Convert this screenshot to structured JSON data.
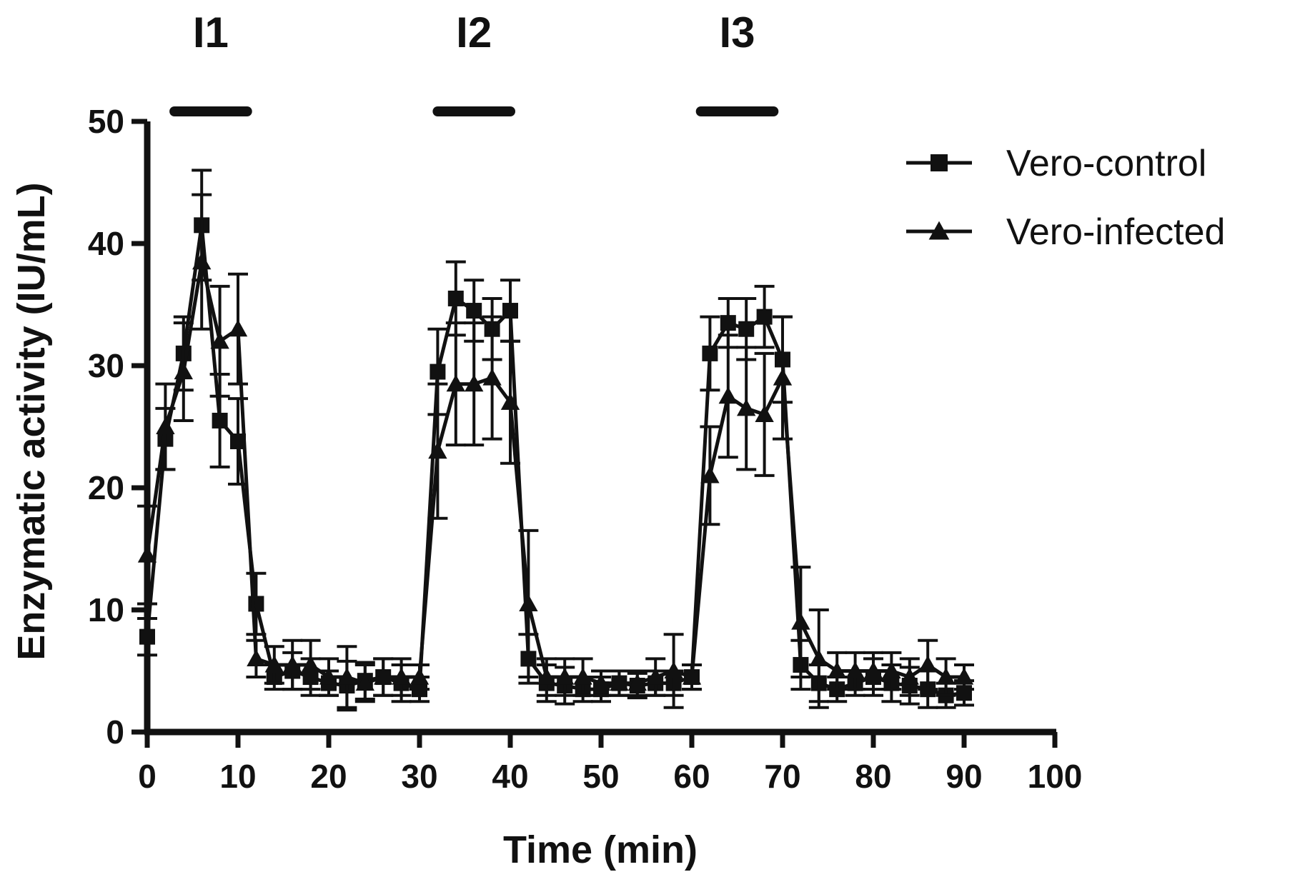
{
  "chart_data": {
    "type": "line",
    "xlabel": "Time (min)",
    "ylabel": "Enzymatic activity (IU/mL)",
    "xlim": [
      0,
      100
    ],
    "ylim": [
      0,
      50
    ],
    "xticks": [
      0,
      10,
      20,
      30,
      40,
      50,
      60,
      70,
      80,
      90,
      100
    ],
    "yticks": [
      0,
      10,
      20,
      30,
      40,
      50
    ],
    "grid": false,
    "legend_position": "top-right",
    "intervals": [
      {
        "label": "I1",
        "start": 3,
        "end": 11
      },
      {
        "label": "I2",
        "start": 32,
        "end": 40
      },
      {
        "label": "I3",
        "start": 61,
        "end": 69
      }
    ],
    "series": [
      {
        "name": "Vero-control",
        "marker": "square",
        "x": [
          0,
          2,
          4,
          6,
          8,
          10,
          12,
          14,
          16,
          18,
          20,
          22,
          24,
          26,
          28,
          30,
          32,
          34,
          36,
          38,
          40,
          42,
          44,
          46,
          48,
          50,
          52,
          54,
          56,
          58,
          60,
          62,
          64,
          66,
          68,
          70,
          72,
          74,
          76,
          78,
          80,
          82,
          84,
          86,
          88,
          90
        ],
        "y": [
          7.8,
          24.0,
          31.0,
          41.5,
          25.5,
          23.8,
          10.5,
          4.5,
          5.0,
          4.5,
          4.0,
          3.8,
          4.2,
          4.5,
          4.0,
          3.5,
          29.5,
          35.5,
          34.5,
          33.0,
          34.5,
          6.0,
          4.0,
          3.8,
          3.5,
          3.5,
          4.0,
          3.8,
          4.0,
          4.0,
          4.5,
          31.0,
          33.5,
          33.0,
          34.0,
          30.5,
          5.5,
          4.0,
          3.5,
          4.0,
          4.5,
          4.0,
          3.8,
          3.5,
          3.0,
          3.2
        ],
        "err": [
          1.5,
          2.5,
          3.0,
          4.5,
          3.8,
          3.5,
          2.5,
          1.0,
          1.5,
          1.5,
          1.0,
          2.0,
          1.5,
          1.5,
          1.5,
          1.0,
          3.5,
          3.0,
          2.5,
          2.5,
          2.5,
          2.0,
          1.5,
          1.5,
          1.0,
          1.0,
          1.0,
          1.0,
          1.0,
          1.0,
          1.0,
          3.0,
          2.0,
          2.5,
          2.5,
          3.5,
          2.0,
          1.5,
          1.0,
          1.0,
          1.5,
          1.5,
          1.5,
          1.5,
          1.0,
          1.0
        ]
      },
      {
        "name": "Vero-infected",
        "marker": "triangle",
        "x": [
          0,
          2,
          4,
          6,
          8,
          10,
          12,
          14,
          16,
          18,
          20,
          22,
          24,
          26,
          28,
          30,
          32,
          34,
          36,
          38,
          40,
          42,
          44,
          46,
          48,
          50,
          52,
          54,
          56,
          58,
          60,
          62,
          64,
          66,
          68,
          70,
          72,
          74,
          76,
          78,
          80,
          82,
          84,
          86,
          88,
          90
        ],
        "y": [
          14.5,
          25.0,
          29.5,
          38.5,
          32.0,
          33.0,
          6.0,
          5.5,
          5.5,
          5.5,
          4.5,
          4.5,
          4.0,
          4.5,
          4.5,
          4.5,
          23.0,
          28.5,
          28.5,
          29.0,
          27.0,
          10.5,
          4.5,
          4.5,
          4.5,
          4.0,
          4.0,
          4.0,
          4.5,
          5.0,
          4.5,
          21.0,
          27.5,
          26.5,
          26.0,
          29.0,
          9.0,
          6.0,
          5.0,
          5.0,
          5.0,
          5.0,
          4.5,
          5.5,
          4.5,
          4.5
        ],
        "err": [
          4.0,
          3.5,
          4.0,
          5.5,
          4.5,
          4.5,
          1.5,
          1.5,
          2.0,
          2.0,
          1.5,
          2.5,
          1.5,
          1.5,
          1.5,
          1.0,
          5.5,
          5.0,
          5.0,
          5.0,
          5.0,
          6.0,
          1.5,
          1.5,
          1.5,
          1.0,
          1.0,
          1.0,
          1.5,
          3.0,
          1.0,
          4.0,
          5.0,
          5.0,
          5.0,
          5.0,
          4.5,
          4.0,
          1.5,
          1.5,
          1.5,
          1.5,
          1.5,
          2.0,
          1.5,
          1.0
        ]
      }
    ]
  }
}
